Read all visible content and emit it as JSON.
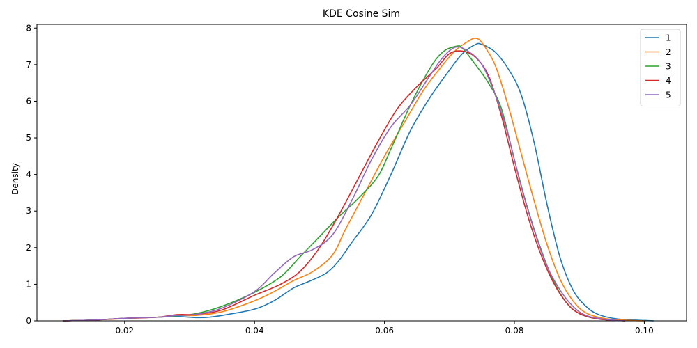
{
  "chart_data": {
    "type": "line",
    "title": "KDE Cosine Sim",
    "xlabel": "",
    "ylabel": "Density",
    "xlim": [
      0.0065,
      0.1065
    ],
    "ylim": [
      0,
      8.1
    ],
    "xticks": [
      0.02,
      0.04,
      0.06,
      0.08,
      0.1
    ],
    "xtick_labels": [
      "0.02",
      "0.04",
      "0.06",
      "0.08",
      "0.10"
    ],
    "yticks": [
      0,
      1,
      2,
      3,
      4,
      5,
      6,
      7,
      8
    ],
    "ytick_labels": [
      "0",
      "1",
      "2",
      "3",
      "4",
      "5",
      "6",
      "7",
      "8"
    ],
    "grid": false,
    "legend_position": "top-right",
    "series": [
      {
        "name": "1",
        "color": "#1f77b4",
        "points": [
          [
            0.0105,
            0
          ],
          [
            0.015,
            0.02
          ],
          [
            0.02,
            0.07
          ],
          [
            0.025,
            0.1
          ],
          [
            0.028,
            0.12
          ],
          [
            0.031,
            0.09
          ],
          [
            0.033,
            0.1
          ],
          [
            0.036,
            0.18
          ],
          [
            0.04,
            0.32
          ],
          [
            0.043,
            0.55
          ],
          [
            0.046,
            0.9
          ],
          [
            0.048,
            1.05
          ],
          [
            0.051,
            1.3
          ],
          [
            0.053,
            1.65
          ],
          [
            0.055,
            2.15
          ],
          [
            0.058,
            2.9
          ],
          [
            0.061,
            4.0
          ],
          [
            0.064,
            5.2
          ],
          [
            0.067,
            6.1
          ],
          [
            0.07,
            6.85
          ],
          [
            0.072,
            7.3
          ],
          [
            0.074,
            7.55
          ],
          [
            0.075,
            7.55
          ],
          [
            0.077,
            7.35
          ],
          [
            0.079,
            6.9
          ],
          [
            0.081,
            6.2
          ],
          [
            0.083,
            4.9
          ],
          [
            0.085,
            3.2
          ],
          [
            0.087,
            1.75
          ],
          [
            0.089,
            0.85
          ],
          [
            0.091,
            0.4
          ],
          [
            0.093,
            0.17
          ],
          [
            0.096,
            0.05
          ],
          [
            0.1,
            0.01
          ],
          [
            0.1015,
            0
          ]
        ]
      },
      {
        "name": "2",
        "color": "#ff7f0e",
        "points": [
          [
            0.0105,
            0
          ],
          [
            0.015,
            0.02
          ],
          [
            0.02,
            0.06
          ],
          [
            0.025,
            0.1
          ],
          [
            0.028,
            0.15
          ],
          [
            0.031,
            0.15
          ],
          [
            0.035,
            0.25
          ],
          [
            0.04,
            0.55
          ],
          [
            0.043,
            0.8
          ],
          [
            0.046,
            1.1
          ],
          [
            0.049,
            1.35
          ],
          [
            0.052,
            1.8
          ],
          [
            0.054,
            2.5
          ],
          [
            0.057,
            3.5
          ],
          [
            0.06,
            4.5
          ],
          [
            0.063,
            5.4
          ],
          [
            0.066,
            6.3
          ],
          [
            0.069,
            7.0
          ],
          [
            0.071,
            7.4
          ],
          [
            0.073,
            7.65
          ],
          [
            0.074,
            7.72
          ],
          [
            0.075,
            7.6
          ],
          [
            0.077,
            7.0
          ],
          [
            0.079,
            5.9
          ],
          [
            0.081,
            4.6
          ],
          [
            0.083,
            3.3
          ],
          [
            0.085,
            2.1
          ],
          [
            0.087,
            1.15
          ],
          [
            0.089,
            0.55
          ],
          [
            0.091,
            0.22
          ],
          [
            0.094,
            0.06
          ],
          [
            0.098,
            0.01
          ],
          [
            0.1,
            0
          ]
        ]
      },
      {
        "name": "3",
        "color": "#2ca02c",
        "points": [
          [
            0.0105,
            0
          ],
          [
            0.015,
            0.02
          ],
          [
            0.02,
            0.07
          ],
          [
            0.025,
            0.1
          ],
          [
            0.028,
            0.14
          ],
          [
            0.031,
            0.2
          ],
          [
            0.035,
            0.4
          ],
          [
            0.04,
            0.78
          ],
          [
            0.044,
            1.2
          ],
          [
            0.047,
            1.75
          ],
          [
            0.05,
            2.3
          ],
          [
            0.053,
            2.85
          ],
          [
            0.056,
            3.35
          ],
          [
            0.059,
            3.95
          ],
          [
            0.061,
            4.7
          ],
          [
            0.064,
            5.9
          ],
          [
            0.067,
            6.9
          ],
          [
            0.069,
            7.35
          ],
          [
            0.071,
            7.5
          ],
          [
            0.072,
            7.45
          ],
          [
            0.074,
            7.0
          ],
          [
            0.076,
            6.5
          ],
          [
            0.078,
            5.8
          ],
          [
            0.08,
            4.4
          ],
          [
            0.082,
            3.1
          ],
          [
            0.084,
            2.0
          ],
          [
            0.086,
            1.1
          ],
          [
            0.088,
            0.5
          ],
          [
            0.09,
            0.2
          ],
          [
            0.093,
            0.05
          ],
          [
            0.097,
            0
          ]
        ]
      },
      {
        "name": "4",
        "color": "#d62728",
        "points": [
          [
            0.0105,
            0
          ],
          [
            0.015,
            0.02
          ],
          [
            0.02,
            0.07
          ],
          [
            0.025,
            0.1
          ],
          [
            0.028,
            0.17
          ],
          [
            0.031,
            0.18
          ],
          [
            0.035,
            0.3
          ],
          [
            0.04,
            0.7
          ],
          [
            0.044,
            1.0
          ],
          [
            0.047,
            1.35
          ],
          [
            0.05,
            2.0
          ],
          [
            0.053,
            2.9
          ],
          [
            0.056,
            3.9
          ],
          [
            0.059,
            4.9
          ],
          [
            0.062,
            5.8
          ],
          [
            0.065,
            6.4
          ],
          [
            0.068,
            6.9
          ],
          [
            0.07,
            7.3
          ],
          [
            0.072,
            7.37
          ],
          [
            0.074,
            7.2
          ],
          [
            0.076,
            6.7
          ],
          [
            0.078,
            5.6
          ],
          [
            0.08,
            4.2
          ],
          [
            0.082,
            2.9
          ],
          [
            0.084,
            1.85
          ],
          [
            0.086,
            1.05
          ],
          [
            0.088,
            0.5
          ],
          [
            0.09,
            0.2
          ],
          [
            0.093,
            0.05
          ],
          [
            0.097,
            0
          ]
        ]
      },
      {
        "name": "5",
        "color": "#9467bd",
        "points": [
          [
            0.0105,
            0
          ],
          [
            0.015,
            0.02
          ],
          [
            0.02,
            0.07
          ],
          [
            0.025,
            0.1
          ],
          [
            0.028,
            0.15
          ],
          [
            0.031,
            0.18
          ],
          [
            0.035,
            0.35
          ],
          [
            0.04,
            0.8
          ],
          [
            0.043,
            1.3
          ],
          [
            0.046,
            1.75
          ],
          [
            0.049,
            1.95
          ],
          [
            0.052,
            2.35
          ],
          [
            0.055,
            3.3
          ],
          [
            0.058,
            4.4
          ],
          [
            0.061,
            5.3
          ],
          [
            0.064,
            5.9
          ],
          [
            0.067,
            6.7
          ],
          [
            0.069,
            7.2
          ],
          [
            0.071,
            7.48
          ],
          [
            0.073,
            7.35
          ],
          [
            0.075,
            7.0
          ],
          [
            0.077,
            6.2
          ],
          [
            0.079,
            5.1
          ],
          [
            0.081,
            3.7
          ],
          [
            0.083,
            2.5
          ],
          [
            0.085,
            1.5
          ],
          [
            0.087,
            0.85
          ],
          [
            0.089,
            0.4
          ],
          [
            0.091,
            0.15
          ],
          [
            0.094,
            0.04
          ],
          [
            0.097,
            0
          ]
        ]
      }
    ]
  }
}
